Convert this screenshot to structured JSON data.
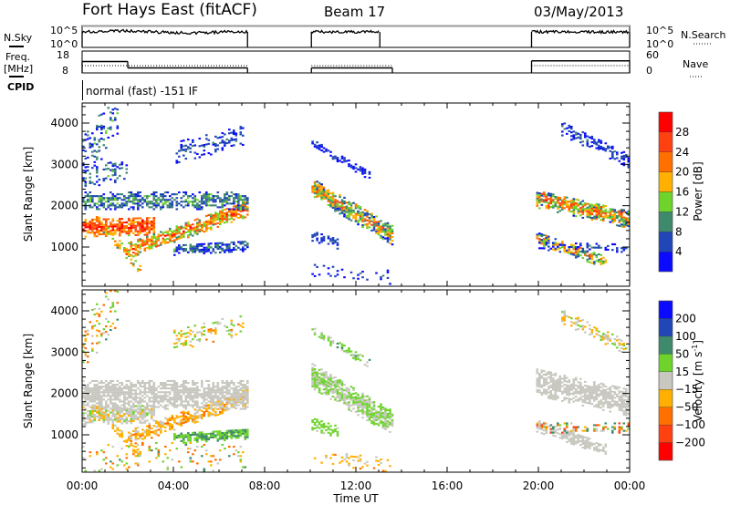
{
  "header": {
    "station": "Fort Hays East (fitACF)",
    "beam": "Beam 17",
    "date": "03/May/2013"
  },
  "status_panels": {
    "nsky": {
      "label": "N.Sky",
      "ticks": [
        "10^5",
        "10^0"
      ],
      "right_label": "N.Search",
      "right_ticks": [
        "10^5",
        "10^0"
      ]
    },
    "freq": {
      "label": "Freq.",
      "unit": "[MHz]",
      "ticks": [
        "18",
        "8"
      ],
      "right_label": "Nave",
      "right_ticks": [
        "60",
        "0"
      ],
      "range": [
        8,
        18
      ],
      "nave_range": [
        0,
        60
      ]
    },
    "cpid": {
      "label": "CPID",
      "value": "normal (fast) -151 IF"
    }
  },
  "operating_segments": [
    [
      0,
      7.25
    ],
    [
      10.05,
      13.6
    ],
    [
      19.7,
      24
    ]
  ],
  "nsky_segments_end": [
    [
      0,
      7.25
    ],
    [
      10.05,
      13.05
    ],
    [
      19.7,
      24
    ]
  ],
  "freq_steps": [
    [
      0,
      2,
      13.2
    ],
    [
      2,
      7.25,
      10.3
    ],
    [
      10.05,
      13.6,
      10.3
    ],
    [
      19.7,
      24,
      13.5
    ]
  ],
  "nave_value": 20,
  "colors": {
    "power": [
      "#0a0aff",
      "#2046b8",
      "#3f8a6c",
      "#6ed42c",
      "#ffb000",
      "#ff7000",
      "#ff4010",
      "#ff0000"
    ],
    "velocity": [
      "#ff0000",
      "#ff4010",
      "#ff7000",
      "#ffb000",
      "#c8c8c0",
      "#6ed42c",
      "#3f8a6c",
      "#2046b8",
      "#0a0aff"
    ]
  },
  "chart_data": [
    {
      "type": "heatmap",
      "title": "Power",
      "xlabel": "Time UT",
      "ylabel": "Slant Range [km]",
      "xlim": [
        0,
        24
      ],
      "ylim": [
        0,
        4480
      ],
      "xticks": [
        "00:00",
        "04:00",
        "08:00",
        "12:00",
        "16:00",
        "20:00",
        "00:00"
      ],
      "yticks": [
        "1000",
        "2000",
        "3000",
        "4000"
      ],
      "colorbar": {
        "label": "Power [dB]",
        "levels": [
          4,
          8,
          12,
          16,
          20,
          24,
          28
        ],
        "tick_labels": [
          "28",
          "24",
          "20",
          "16",
          "12",
          "8",
          "4"
        ]
      },
      "features": [
        {
          "t": [
            0,
            3.2
          ],
          "r": [
            1500,
            1550
          ],
          "w": 450,
          "v": 26,
          "s": 6,
          "d": 0.85
        },
        {
          "t": [
            2.0,
            7.2
          ],
          "r": [
            950,
            1950
          ],
          "w": 380,
          "v": 22,
          "s": 8,
          "d": 0.8
        },
        {
          "t": [
            0.6,
            2.6
          ],
          "r": [
            1700,
            450
          ],
          "w": 260,
          "v": 20,
          "s": 6,
          "d": 0.6
        },
        {
          "t": [
            0,
            7.2
          ],
          "r": [
            2150,
            2150
          ],
          "w": 420,
          "v": 10,
          "s": 5,
          "d": 0.7
        },
        {
          "t": [
            4.0,
            7.2
          ],
          "r": [
            950,
            1050
          ],
          "w": 240,
          "v": 8,
          "s": 5,
          "d": 0.75
        },
        {
          "t": [
            4.0,
            7.0
          ],
          "r": [
            3300,
            3700
          ],
          "w": 500,
          "v": 6,
          "s": 4,
          "d": 0.35
        },
        {
          "t": [
            0,
            1.6
          ],
          "r": [
            3200,
            4300
          ],
          "w": 1200,
          "v": 8,
          "s": 6,
          "d": 0.25
        },
        {
          "t": [
            0,
            2.0
          ],
          "r": [
            2700,
            2900
          ],
          "w": 500,
          "v": 9,
          "s": 5,
          "d": 0.3
        },
        {
          "t": [
            10.05,
            13.6
          ],
          "r": [
            2450,
            1300
          ],
          "w": 460,
          "v": 18,
          "s": 10,
          "d": 0.9
        },
        {
          "t": [
            10.05,
            12.6
          ],
          "r": [
            3550,
            2750
          ],
          "w": 220,
          "v": 5,
          "s": 3,
          "d": 0.6
        },
        {
          "t": [
            10.05,
            11.2
          ],
          "r": [
            1300,
            1100
          ],
          "w": 250,
          "v": 6,
          "s": 3,
          "d": 0.6
        },
        {
          "t": [
            10.05,
            13.6
          ],
          "r": [
            500,
            300
          ],
          "w": 350,
          "v": 6,
          "s": 4,
          "d": 0.15
        },
        {
          "t": [
            19.9,
            24
          ],
          "r": [
            2200,
            1700
          ],
          "w": 450,
          "v": 20,
          "s": 10,
          "d": 0.85
        },
        {
          "t": [
            19.9,
            23.0
          ],
          "r": [
            1250,
            650
          ],
          "w": 300,
          "v": 18,
          "s": 10,
          "d": 0.75
        },
        {
          "t": [
            21.0,
            24
          ],
          "r": [
            3900,
            3100
          ],
          "w": 350,
          "v": 6,
          "s": 4,
          "d": 0.5
        },
        {
          "t": [
            19.9,
            24
          ],
          "r": [
            1050,
            1000
          ],
          "w": 200,
          "v": 6,
          "s": 4,
          "d": 0.35
        }
      ]
    },
    {
      "type": "heatmap",
      "title": "Velocity",
      "xlabel": "Time UT",
      "ylabel": "Slant Range [km]",
      "xlim": [
        0,
        24
      ],
      "ylim": [
        0,
        4480
      ],
      "xticks": [
        "00:00",
        "04:00",
        "08:00",
        "12:00",
        "16:00",
        "20:00",
        "00:00"
      ],
      "yticks": [
        "1000",
        "2000",
        "3000",
        "4000"
      ],
      "colorbar": {
        "label": "Velocity",
        "unit": "[m s",
        "unit_exp": "-1",
        "unit_end": "]",
        "levels": [
          -200,
          -100,
          -50,
          -15,
          15,
          50,
          100,
          200
        ],
        "tick_labels": [
          "200",
          "100",
          "50",
          "15",
          "-15",
          "-50",
          "-100",
          "-200"
        ]
      },
      "features": [
        {
          "t": [
            0,
            3.2
          ],
          "r": [
            1500,
            1550
          ],
          "w": 450,
          "v": 0,
          "s": 20,
          "d": 0.85
        },
        {
          "t": [
            2.0,
            7.2
          ],
          "r": [
            950,
            1950
          ],
          "w": 380,
          "v": -30,
          "s": 30,
          "d": 0.75
        },
        {
          "t": [
            0.6,
            2.6
          ],
          "r": [
            1700,
            450
          ],
          "w": 260,
          "v": -25,
          "s": 25,
          "d": 0.5
        },
        {
          "t": [
            0,
            7.2
          ],
          "r": [
            2000,
            2000
          ],
          "w": 700,
          "v": 0,
          "s": 12,
          "d": 0.8
        },
        {
          "t": [
            4.0,
            7.2
          ],
          "r": [
            950,
            1050
          ],
          "w": 260,
          "v": 45,
          "s": 25,
          "d": 0.85
        },
        {
          "t": [
            4.0,
            7.0
          ],
          "r": [
            3300,
            3700
          ],
          "w": 500,
          "v": -10,
          "s": 60,
          "d": 0.3
        },
        {
          "t": [
            0,
            1.6
          ],
          "r": [
            3200,
            4300
          ],
          "w": 1200,
          "v": -20,
          "s": 80,
          "d": 0.25
        },
        {
          "t": [
            0,
            7.2
          ],
          "r": [
            500,
            500
          ],
          "w": 700,
          "v": -20,
          "s": 80,
          "d": 0.12
        },
        {
          "t": [
            10.05,
            13.6
          ],
          "r": [
            2450,
            1300
          ],
          "w": 600,
          "v": 15,
          "s": 25,
          "d": 0.9
        },
        {
          "t": [
            10.05,
            12.6
          ],
          "r": [
            3550,
            2750
          ],
          "w": 220,
          "v": 25,
          "s": 30,
          "d": 0.5
        },
        {
          "t": [
            10.05,
            11.2
          ],
          "r": [
            1300,
            1100
          ],
          "w": 300,
          "v": 30,
          "s": 20,
          "d": 0.6
        },
        {
          "t": [
            10.05,
            13.6
          ],
          "r": [
            500,
            300
          ],
          "w": 350,
          "v": -30,
          "s": 30,
          "d": 0.2
        },
        {
          "t": [
            19.9,
            24
          ],
          "r": [
            2300,
            1800
          ],
          "w": 650,
          "v": 0,
          "s": 12,
          "d": 0.85
        },
        {
          "t": [
            19.9,
            23.0
          ],
          "r": [
            1250,
            650
          ],
          "w": 300,
          "v": 0,
          "s": 15,
          "d": 0.75
        },
        {
          "t": [
            21.0,
            24
          ],
          "r": [
            3900,
            3100
          ],
          "w": 350,
          "v": -5,
          "s": 30,
          "d": 0.45
        },
        {
          "t": [
            19.9,
            24
          ],
          "r": [
            1200,
            1200
          ],
          "w": 250,
          "v": -20,
          "s": 120,
          "d": 0.4
        }
      ]
    }
  ]
}
